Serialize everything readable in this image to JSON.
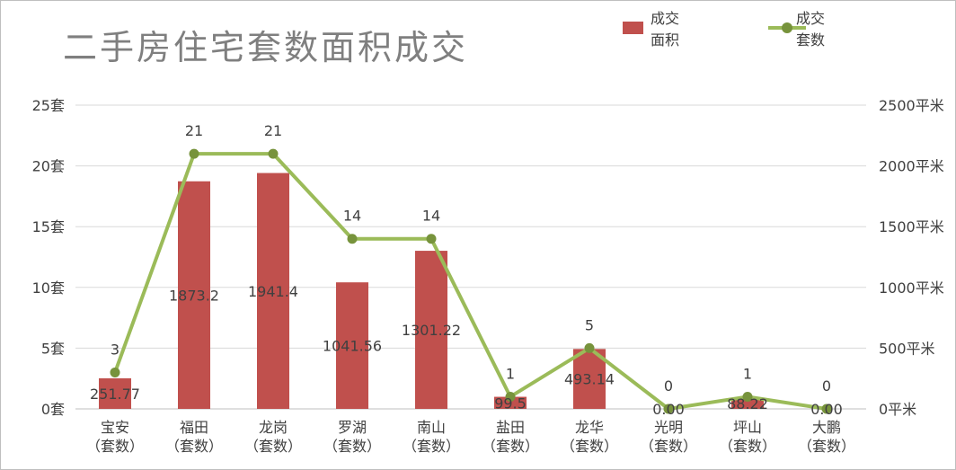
{
  "title": "二手房住宅套数面积成交",
  "legend": {
    "area_label": "成交面积",
    "count_label": "成交套数"
  },
  "colors": {
    "bar": "#c0504d",
    "line": "#9bbb59",
    "marker": "#77933c",
    "grid": "#d9d9d9",
    "text": "#404040"
  },
  "chart_data": {
    "type": "bar",
    "title": "二手房住宅套数面积成交",
    "categories": [
      "宝安\n（套数）",
      "福田\n（套数）",
      "龙岗\n（套数）",
      "罗湖\n（套数）",
      "南山\n（套数）",
      "盐田\n（套数）",
      "龙华\n（套数）",
      "光明\n（套数）",
      "坪山\n（套数）",
      "大鹏\n（套数）"
    ],
    "series": [
      {
        "name": "成交面积",
        "type": "bar",
        "axis": "right",
        "values": [
          251.77,
          1873.2,
          1941.4,
          1041.56,
          1301.22,
          99.5,
          493.14,
          0,
          88.22,
          0
        ],
        "labels": [
          "251.77",
          "1873.2",
          "1941.4",
          "1041.56",
          "1301.22",
          "99.5",
          "493.14",
          "0.00",
          "88.22",
          "0.00"
        ]
      },
      {
        "name": "成交套数",
        "type": "line",
        "axis": "left",
        "values": [
          3,
          21,
          21,
          14,
          14,
          1,
          5,
          0,
          1,
          0
        ],
        "labels": [
          "3",
          "21",
          "21",
          "14",
          "14",
          "1",
          "5",
          "0",
          "1",
          "0"
        ]
      }
    ],
    "y_left": {
      "ylim": [
        0,
        25
      ],
      "ticks": [
        0,
        5,
        10,
        15,
        20,
        25
      ],
      "tick_labels": [
        "0套",
        "5套",
        "10套",
        "15套",
        "20套",
        "25套"
      ]
    },
    "y_right": {
      "ylim": [
        0,
        2500
      ],
      "ticks": [
        0,
        500,
        1000,
        1500,
        2000,
        2500
      ],
      "tick_labels": [
        "0平米",
        "500平米",
        "1000平米",
        "1500平米",
        "2000平米",
        "2500平米"
      ]
    },
    "grid": true,
    "legend_position": "top-right"
  }
}
